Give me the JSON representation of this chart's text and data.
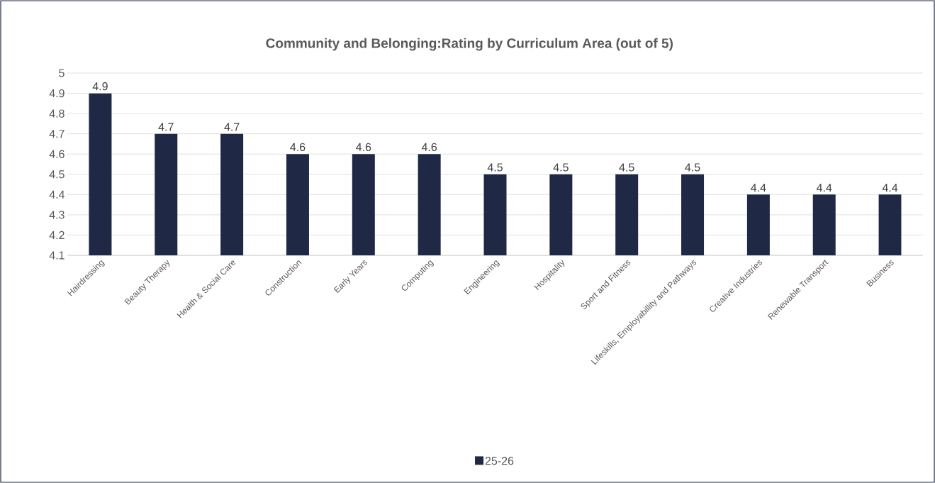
{
  "chart_data": {
    "type": "bar",
    "title": "Community and Belonging:Rating by Curriculum Area (out of 5)",
    "categories": [
      "Hairdressing",
      "Beauty Therapy",
      "Health & Social Care",
      "Construction",
      "Early Years",
      "Computing",
      "Engineering",
      "Hospitality",
      "Sport and Fitness",
      "Lifeskills, Employabillity and Pathways",
      "Creative Industries",
      "Renewable Transport",
      "Business"
    ],
    "series": [
      {
        "name": "25-26",
        "color": "#1f2845",
        "values": [
          4.9,
          4.7,
          4.7,
          4.6,
          4.6,
          4.6,
          4.5,
          4.5,
          4.5,
          4.5,
          4.4,
          4.4,
          4.4
        ]
      }
    ],
    "ylim": [
      4.1,
      5
    ],
    "yticks": [
      4.1,
      4.2,
      4.3,
      4.4,
      4.5,
      4.6,
      4.7,
      4.8,
      4.9,
      5
    ],
    "grid": "y",
    "legend": "bottom",
    "data_labels": true
  }
}
